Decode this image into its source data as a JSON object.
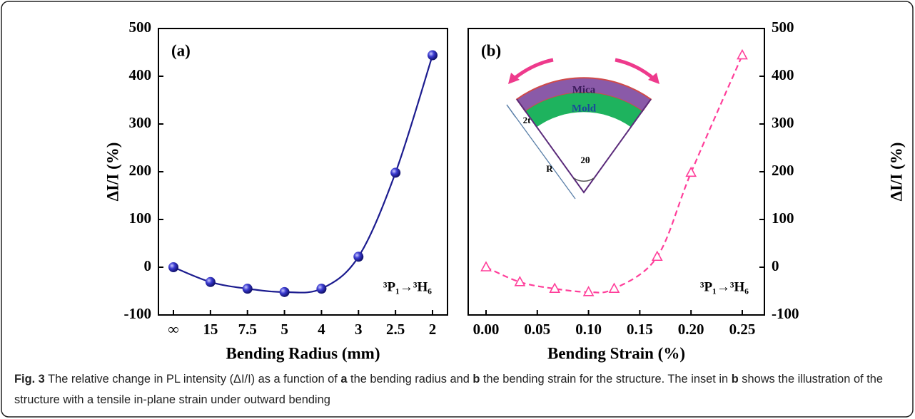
{
  "chart_data": [
    {
      "type": "line",
      "panel_label": "(a)",
      "xlabel": "Bending Radius (mm)",
      "ylabel": "ΔI/I (%)",
      "annotation": "³P₁→³H₆",
      "categories": [
        "∞",
        "15",
        "7.5",
        "5",
        "4",
        "3",
        "2.5",
        "2"
      ],
      "values": [
        0,
        -31,
        -45,
        -52,
        -45,
        22,
        198,
        444
      ],
      "color": "#1c1c8f",
      "smooth": true,
      "dashed": false,
      "marker": "circle",
      "y_axis": "left",
      "ylim": [
        -100,
        500
      ],
      "yticks": [
        -100,
        0,
        100,
        200,
        300,
        400,
        500
      ]
    },
    {
      "type": "line",
      "panel_label": "(b)",
      "xlabel": "Bending Strain (%)",
      "ylabel": "ΔI/I (%)",
      "annotation": "³P₁→³H₆",
      "x": [
        0,
        0.033,
        0.067,
        0.1,
        0.125,
        0.167,
        0.2,
        0.25
      ],
      "values": [
        0,
        -31,
        -45,
        -52,
        -45,
        22,
        198,
        444
      ],
      "color": "#ff3e9a",
      "smooth": true,
      "dashed": true,
      "marker": "triangle",
      "y_axis": "right",
      "xlim": [
        -0.0174,
        0.2716
      ],
      "xticks": [
        {
          "value": 0,
          "label": "0.00"
        },
        0.05,
        {
          "value": 0.1,
          "label": "0.10"
        },
        0.15,
        {
          "value": 0.2,
          "label": "0.20"
        },
        0.25
      ],
      "ylim": [
        -100,
        500
      ],
      "yticks": [
        -100,
        0,
        100,
        200,
        300,
        400,
        500
      ]
    }
  ],
  "inset": {
    "top_layer": "Mica",
    "bottom_layer": "Mold",
    "thickness": "2t",
    "radius": "R",
    "angle": "2θ"
  },
  "caption": {
    "segments": [
      "Fig. 3",
      " The relative change in PL intensity (ΔI/I) as a function of ",
      "a",
      " the bending radius and ",
      "b",
      " the bending strain for the structure. The inset in ",
      "b",
      " shows the illustration of the structure with a tensile in-plane strain under outward bending"
    ]
  }
}
